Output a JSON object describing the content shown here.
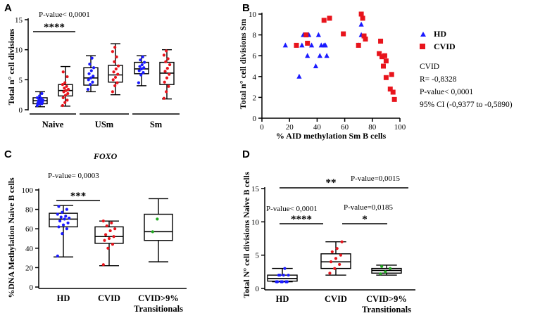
{
  "panels": {
    "A": {
      "label": "A",
      "ylabel": "Total n° cell divisions",
      "yticks": [
        0,
        5,
        10,
        15
      ],
      "ylim": [
        0,
        15
      ],
      "pvalue": "P-value< 0,0001",
      "sig": "****",
      "groups": [
        "Naive",
        "USm",
        "Sm"
      ],
      "boxes": [
        {
          "group": "Naive",
          "cohort": "HD",
          "color": "#1a1aff",
          "min": 0.5,
          "q1": 1.0,
          "median": 1.5,
          "q3": 2.0,
          "max": 3.0,
          "points": [
            0.7,
            1.0,
            1.0,
            1.1,
            1.2,
            1.3,
            1.4,
            1.5,
            1.6,
            1.7,
            1.9,
            2.0,
            2.3,
            2.7
          ]
        },
        {
          "group": "Naive",
          "cohort": "CVID",
          "color": "#e8141c",
          "min": 0.6,
          "q1": 2.3,
          "median": 3.2,
          "q3": 4.2,
          "max": 7.2,
          "points": [
            0.7,
            1.2,
            1.6,
            2.0,
            2.4,
            2.7,
            3.0,
            3.2,
            3.4,
            3.6,
            3.9,
            4.2,
            4.5,
            5.5,
            6.3
          ]
        },
        {
          "group": "USm",
          "cohort": "HD",
          "color": "#1a1aff",
          "min": 3.0,
          "q1": 4.1,
          "median": 5.3,
          "q3": 7.0,
          "max": 9.0,
          "points": [
            3.4,
            4.2,
            4.6,
            5.0,
            5.3,
            5.6,
            6.0,
            6.5,
            7.0,
            7.6,
            8.6
          ]
        },
        {
          "group": "USm",
          "cohort": "CVID",
          "color": "#e8141c",
          "min": 2.5,
          "q1": 4.6,
          "median": 5.8,
          "q3": 7.4,
          "max": 11.0,
          "points": [
            3.0,
            4.0,
            4.5,
            5.0,
            5.4,
            5.9,
            6.3,
            6.8,
            7.3,
            8.0,
            8.8,
            9.7,
            10.4
          ]
        },
        {
          "group": "Sm",
          "cohort": "HD",
          "color": "#1a1aff",
          "min": 4.0,
          "q1": 6.0,
          "median": 6.8,
          "q3": 7.9,
          "max": 9.0,
          "points": [
            4.5,
            5.8,
            6.2,
            6.5,
            6.8,
            7.0,
            7.2,
            7.5,
            7.9,
            8.3,
            8.8
          ]
        },
        {
          "group": "Sm",
          "cohort": "CVID",
          "color": "#e8141c",
          "min": 1.8,
          "q1": 4.2,
          "median": 6.1,
          "q3": 7.9,
          "max": 10.0,
          "points": [
            1.9,
            3.0,
            3.9,
            4.6,
            5.3,
            5.9,
            6.4,
            6.9,
            7.5,
            8.0,
            8.5,
            9.1,
            9.8
          ]
        }
      ]
    },
    "B": {
      "label": "B",
      "ylabel": "Total n° cell divisions Sm",
      "xlabel": "% AID methylation Sm B cells",
      "xticks": [
        0,
        20,
        40,
        60,
        80,
        100
      ],
      "yticks": [
        0,
        2,
        4,
        6,
        8,
        10
      ],
      "xlim": [
        0,
        100
      ],
      "ylim": [
        0,
        10
      ],
      "legend": [
        {
          "name": "HD",
          "color": "#1a1aff",
          "marker": "triangle"
        },
        {
          "name": "CVID",
          "color": "#e8141c",
          "marker": "square"
        }
      ],
      "stats": [
        "CVID",
        "R= -0,8328",
        "P-value< 0,0001",
        "95% CI (-0,9377 to -0,5890)"
      ],
      "hd": [
        [
          17,
          7.0
        ],
        [
          27,
          4.0
        ],
        [
          29,
          7.0
        ],
        [
          30,
          8.0
        ],
        [
          33,
          6.0
        ],
        [
          34,
          8.0
        ],
        [
          36,
          7.0
        ],
        [
          39,
          5.0
        ],
        [
          41,
          8.0
        ],
        [
          42,
          6.0
        ],
        [
          43,
          7.0
        ],
        [
          45,
          7.0
        ],
        [
          46,
          7.0
        ],
        [
          47,
          6.0
        ],
        [
          70,
          7.0
        ],
        [
          72,
          9.0
        ],
        [
          72,
          8.0
        ]
      ],
      "cvid": [
        [
          25,
          7.0
        ],
        [
          32,
          8.0
        ],
        [
          33,
          7.2
        ],
        [
          45,
          9.4
        ],
        [
          49,
          9.6
        ],
        [
          59,
          8.1
        ],
        [
          70,
          7.0
        ],
        [
          72,
          10.0
        ],
        [
          73,
          9.6
        ],
        [
          74,
          7.9
        ],
        [
          75,
          7.6
        ],
        [
          85,
          6.2
        ],
        [
          86,
          7.4
        ],
        [
          87,
          5.9
        ],
        [
          88,
          5.0
        ],
        [
          89,
          6.0
        ],
        [
          90,
          5.5
        ],
        [
          90,
          3.9
        ],
        [
          93,
          2.8
        ],
        [
          94,
          4.2
        ],
        [
          95,
          2.5
        ],
        [
          96,
          1.8
        ]
      ]
    },
    "C": {
      "label": "C",
      "title": "FOXO",
      "ylabel": "%DNA Methylation Naive B cells",
      "yticks": [
        0,
        20,
        40,
        60,
        80,
        100
      ],
      "ylim": [
        0,
        100
      ],
      "pvalue": "P-value= 0,0003",
      "sig": "***",
      "groups": [
        [
          "HD"
        ],
        [
          "CVID"
        ],
        [
          "CVID>9%",
          "Transitionals"
        ]
      ],
      "boxes": [
        {
          "group": "HD",
          "color": "#1a1aff",
          "min": 31,
          "q1": 62,
          "median": 70,
          "q3": 76,
          "max": 84,
          "points": [
            32,
            55,
            60,
            62,
            64,
            66,
            68,
            70,
            71,
            72,
            73,
            75,
            77,
            80,
            83
          ]
        },
        {
          "group": "CVID",
          "color": "#e8141c",
          "min": 22,
          "q1": 45,
          "median": 52,
          "q3": 62,
          "max": 68,
          "points": [
            23,
            40,
            44,
            48,
            50,
            52,
            54,
            58,
            60,
            63,
            66,
            68
          ]
        },
        {
          "group": "CVID>9% Transitionals",
          "color": "#22aa22",
          "min": 26,
          "q1": 48,
          "median": 57,
          "q3": 75,
          "max": 91,
          "points": [
            57,
            70
          ]
        }
      ]
    },
    "D": {
      "label": "D",
      "ylabel": "Total N° cell divisions Naive B cells",
      "yticks": [
        0,
        5,
        10,
        15
      ],
      "ylim": [
        0,
        15
      ],
      "groups": [
        [
          "HD"
        ],
        [
          "CVID"
        ],
        [
          "CVID>9%",
          "Transitionals"
        ]
      ],
      "annotations": [
        {
          "text": "P-value< 0,0001",
          "sig": "****"
        },
        {
          "text": "P-value=0,0185",
          "sig": "*"
        },
        {
          "text": "P-value=0,0015",
          "sig": "**"
        }
      ],
      "boxes": [
        {
          "group": "HD",
          "color": "#1a1aff",
          "min": 1.0,
          "q1": 1.1,
          "median": 1.5,
          "q3": 2.0,
          "max": 3.0,
          "points": [
            1.0,
            1.0,
            1.0,
            1.0,
            1.0,
            1.0,
            2.0,
            2.0,
            2.0,
            2.0,
            3.0
          ]
        },
        {
          "group": "CVID",
          "color": "#e8141c",
          "min": 2.0,
          "q1": 3.0,
          "median": 4.0,
          "q3": 5.2,
          "max": 7.0,
          "points": [
            2.3,
            3.0,
            3.6,
            4.0,
            4.5,
            5.0,
            5.5,
            6.0,
            7.0
          ]
        },
        {
          "group": "CVID>9% Transitionals",
          "color": "#22aa22",
          "min": 2.0,
          "q1": 2.3,
          "median": 2.7,
          "q3": 3.0,
          "max": 3.5,
          "points": [
            2.2,
            2.5,
            3.0,
            3.3
          ]
        }
      ]
    }
  },
  "chart_data": [
    {
      "panel": "A",
      "type": "box",
      "ylabel": "Total n° cell divisions",
      "ylim": [
        0,
        15
      ],
      "categories": [
        "Naive",
        "USm",
        "Sm"
      ],
      "series": [
        {
          "name": "HD",
          "color": "#1a1aff"
        },
        {
          "name": "CVID",
          "color": "#e8141c"
        }
      ]
    },
    {
      "panel": "B",
      "type": "scatter",
      "xlabel": "% AID methylation Sm B cells",
      "ylabel": "Total n° cell divisions Sm",
      "xlim": [
        0,
        100
      ],
      "ylim": [
        0,
        10
      ]
    },
    {
      "panel": "C",
      "type": "box",
      "title": "FOXO",
      "ylabel": "%DNA Methylation Naive B cells",
      "ylim": [
        0,
        100
      ],
      "categories": [
        "HD",
        "CVID",
        "CVID>9% Transitionals"
      ]
    },
    {
      "panel": "D",
      "type": "box",
      "ylabel": "Total N° cell divisions Naive B cells",
      "ylim": [
        0,
        15
      ],
      "categories": [
        "HD",
        "CVID",
        "CVID>9% Transitionals"
      ]
    }
  ]
}
